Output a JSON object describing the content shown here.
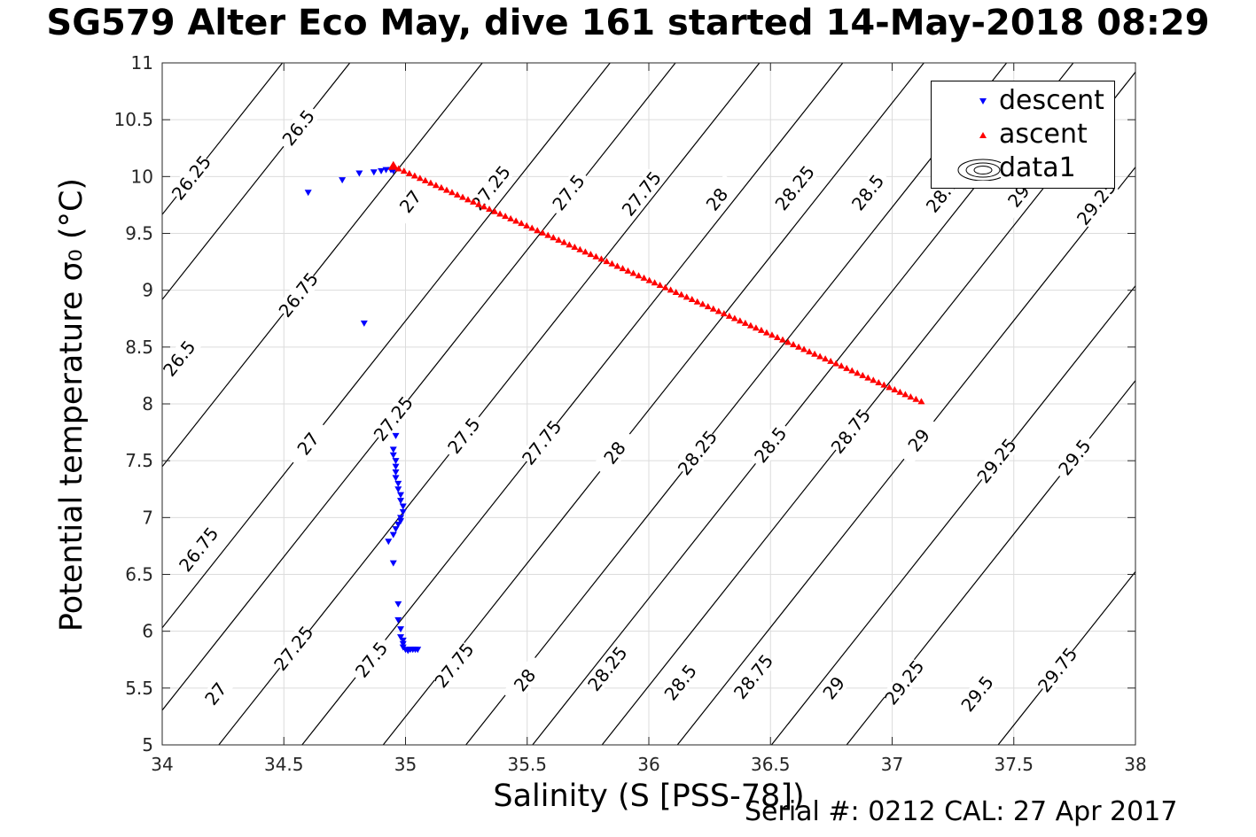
{
  "figure": {
    "title": "SG579 Alter Eco May, dive 161 started 14-May-2018 08:29",
    "footer": "Serial #: 0212  CAL: 27 Apr 2017"
  },
  "chart_data": {
    "type": "scatter",
    "xlabel": "Salinity (S [PSS-78])",
    "ylabel": "Potential temperature σ₀ (°C)",
    "xlim": [
      34,
      38
    ],
    "ylim": [
      5,
      11
    ],
    "xticks": [
      34,
      34.5,
      35,
      35.5,
      36,
      36.5,
      37,
      37.5,
      38
    ],
    "xtick_labels": [
      "34",
      "34.5",
      "35",
      "35.5",
      "36",
      "36.5",
      "37",
      "37.5",
      "38"
    ],
    "yticks": [
      5,
      5.5,
      6,
      6.5,
      7,
      7.5,
      8,
      8.5,
      9,
      9.5,
      10,
      10.5,
      11
    ],
    "ytick_labels": [
      "5",
      "5.5",
      "6",
      "6.5",
      "7",
      "7.5",
      "8",
      "8.5",
      "9",
      "9.5",
      "10",
      "10.5",
      "11"
    ],
    "grid": true,
    "legend_position": "top-right",
    "series": [
      {
        "name": "descent",
        "marker": "triangle-down",
        "color": "#0000ff",
        "points": [
          [
            34.6,
            9.86
          ],
          [
            34.74,
            9.97
          ],
          [
            34.81,
            10.03
          ],
          [
            34.87,
            10.04
          ],
          [
            34.9,
            10.05
          ],
          [
            34.92,
            10.06
          ],
          [
            34.94,
            10.06
          ],
          [
            34.95,
            10.05
          ],
          [
            34.83,
            8.71
          ],
          [
            34.96,
            7.72
          ],
          [
            34.95,
            7.6
          ],
          [
            34.95,
            7.55
          ],
          [
            34.96,
            7.5
          ],
          [
            34.96,
            7.45
          ],
          [
            34.96,
            7.4
          ],
          [
            34.96,
            7.35
          ],
          [
            34.97,
            7.3
          ],
          [
            34.97,
            7.25
          ],
          [
            34.98,
            7.2
          ],
          [
            34.98,
            7.15
          ],
          [
            34.99,
            7.1
          ],
          [
            34.99,
            7.05
          ],
          [
            34.98,
            7.0
          ],
          [
            34.98,
            6.97
          ],
          [
            34.97,
            6.94
          ],
          [
            34.96,
            6.9
          ],
          [
            34.95,
            6.85
          ],
          [
            34.93,
            6.79
          ],
          [
            34.95,
            6.6
          ],
          [
            34.97,
            6.24
          ],
          [
            34.97,
            6.1
          ],
          [
            34.98,
            6.02
          ],
          [
            34.98,
            5.95
          ],
          [
            34.99,
            5.92
          ],
          [
            34.99,
            5.89
          ],
          [
            34.99,
            5.86
          ],
          [
            35.0,
            5.84
          ],
          [
            35.01,
            5.83
          ],
          [
            35.02,
            5.84
          ],
          [
            35.03,
            5.84
          ],
          [
            35.04,
            5.84
          ],
          [
            35.05,
            5.84
          ]
        ]
      },
      {
        "name": "ascent",
        "marker": "triangle-up",
        "color": "#ff0000",
        "points": [
          [
            34.95,
            10.09
          ],
          [
            37.12,
            8.02
          ]
        ],
        "marker_spacing": 0.022
      }
    ],
    "contour_legend_entry": "data1",
    "contour_series": [
      {
        "name": "26.25",
        "labels": [
          [
            34.12,
            9.99
          ]
        ]
      },
      {
        "name": "26.5",
        "labels": [
          [
            34.56,
            10.43
          ],
          [
            34.07,
            8.4
          ]
        ]
      },
      {
        "name": "26.75",
        "labels": [
          [
            34.56,
            8.96
          ],
          [
            34.15,
            6.72
          ]
        ]
      },
      {
        "name": "27",
        "labels": [
          [
            34.6,
            7.65
          ],
          [
            34.22,
            5.45
          ],
          [
            35.02,
            9.78
          ]
        ]
      },
      {
        "name": "27.25",
        "labels": [
          [
            34.95,
            7.87
          ],
          [
            34.54,
            5.85
          ],
          [
            35.35,
            9.9
          ]
        ]
      },
      {
        "name": "27.5",
        "labels": [
          [
            35.24,
            7.72
          ],
          [
            34.86,
            5.75
          ],
          [
            35.67,
            9.86
          ]
        ]
      },
      {
        "name": "27.75",
        "labels": [
          [
            35.56,
            7.66
          ],
          [
            35.2,
            5.7
          ],
          [
            35.97,
            9.85
          ]
        ]
      },
      {
        "name": "28",
        "labels": [
          [
            35.86,
            7.57
          ],
          [
            35.49,
            5.57
          ],
          [
            36.28,
            9.8
          ]
        ]
      },
      {
        "name": "28.25",
        "labels": [
          [
            36.2,
            7.57
          ],
          [
            35.83,
            5.67
          ],
          [
            36.6,
            9.9
          ]
        ]
      },
      {
        "name": "28.5",
        "labels": [
          [
            36.5,
            7.64
          ],
          [
            36.13,
            5.55
          ],
          [
            36.9,
            9.86
          ]
        ]
      },
      {
        "name": "28.75",
        "labels": [
          [
            36.83,
            7.76
          ],
          [
            36.43,
            5.6
          ],
          [
            37.22,
            9.88
          ]
        ]
      },
      {
        "name": "29",
        "labels": [
          [
            37.11,
            7.68
          ],
          [
            36.76,
            5.5
          ],
          [
            37.52,
            9.83
          ]
        ]
      },
      {
        "name": "29.25",
        "labels": [
          [
            37.43,
            7.5
          ],
          [
            37.05,
            5.55
          ],
          [
            37.84,
            9.77
          ]
        ]
      },
      {
        "name": "29.5",
        "labels": [
          [
            37.75,
            7.53
          ],
          [
            37.35,
            5.45
          ]
        ]
      },
      {
        "name": "29.75",
        "labels": [
          [
            37.68,
            5.66
          ]
        ]
      }
    ]
  },
  "legend": {
    "descent_label": "descent",
    "ascent_label": "ascent",
    "contour_label": "data1"
  }
}
